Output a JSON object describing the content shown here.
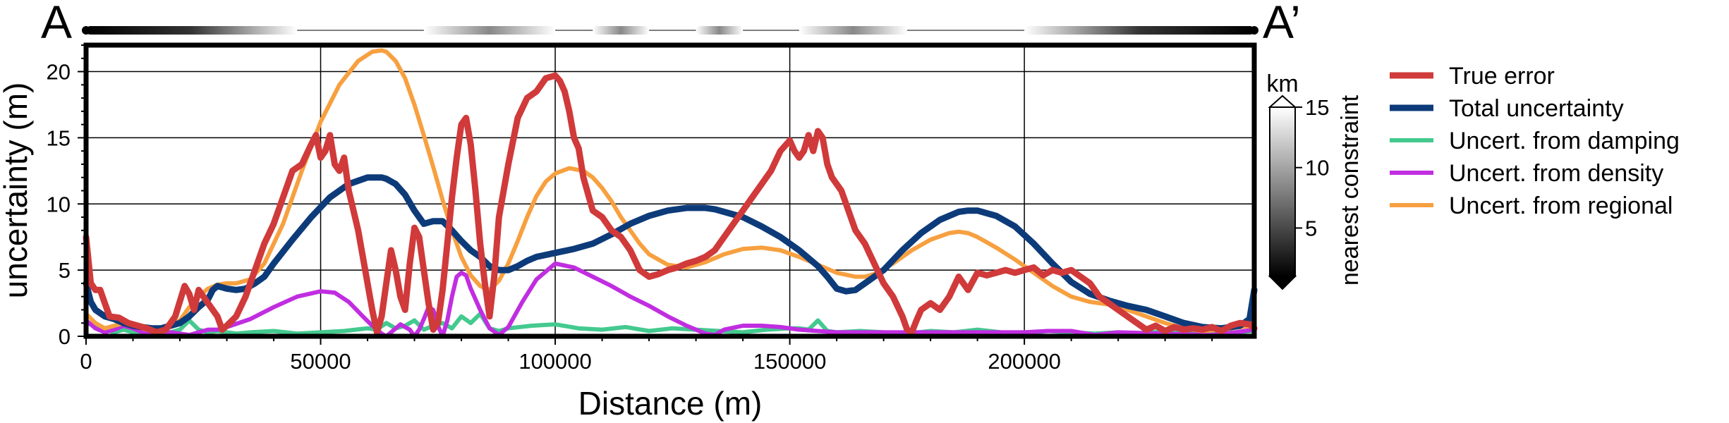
{
  "chart_data": {
    "type": "line",
    "title": "",
    "section_labels": {
      "start": "A",
      "end": "A’"
    },
    "xlabel": "Distance (m)",
    "ylabel": "uncertainty (m)",
    "xlim": [
      0,
      249000
    ],
    "ylim": [
      0,
      22
    ],
    "xticks": [
      0,
      50000,
      100000,
      150000,
      200000
    ],
    "yticks": [
      0,
      5,
      10,
      15,
      20
    ],
    "grid": true,
    "legend_position": "right",
    "series": [
      {
        "name": "True error",
        "color": "#d03a3a",
        "x": [
          0,
          1000,
          2000,
          3000,
          4000,
          5000,
          7000,
          9000,
          11000,
          13000,
          15000,
          17000,
          19000,
          21000,
          22000,
          23000,
          24000,
          25000,
          26000,
          27000,
          28000,
          29000,
          30000,
          32000,
          34000,
          36000,
          38000,
          40000,
          42000,
          44000,
          46000,
          48000,
          49000,
          50000,
          51000,
          52000,
          53000,
          54000,
          55000,
          56000,
          57000,
          58000,
          59000,
          60000,
          61000,
          62000,
          63000,
          64000,
          65000,
          66000,
          67000,
          68000,
          69000,
          70000,
          71000,
          72000,
          73000,
          74000,
          75000,
          76000,
          77000,
          78000,
          79000,
          80000,
          81000,
          82000,
          83000,
          84000,
          85000,
          86000,
          87000,
          88000,
          90000,
          92000,
          94000,
          96000,
          98000,
          100000,
          101000,
          102000,
          103000,
          104000,
          105000,
          106000,
          108000,
          110000,
          112000,
          114000,
          116000,
          118000,
          120000,
          122000,
          124000,
          126000,
          128000,
          130000,
          132000,
          134000,
          136000,
          138000,
          140000,
          142000,
          144000,
          146000,
          148000,
          150000,
          151000,
          152000,
          153000,
          154000,
          155000,
          156000,
          157000,
          158000,
          159000,
          160000,
          161000,
          162000,
          163000,
          164000,
          166000,
          168000,
          170000,
          172000,
          174000,
          175000,
          176000,
          177000,
          178000,
          180000,
          182000,
          184000,
          186000,
          188000,
          190000,
          192000,
          194000,
          196000,
          198000,
          200000,
          202000,
          204000,
          206000,
          208000,
          210000,
          212000,
          214000,
          216000,
          218000,
          220000,
          222000,
          224000,
          226000,
          228000,
          230000,
          232000,
          234000,
          236000,
          238000,
          240000,
          242000,
          244000,
          246000,
          248000,
          249000
        ],
        "y": [
          7.5,
          4.0,
          3.5,
          3.5,
          2.5,
          1.5,
          1.4,
          1.0,
          0.8,
          0.6,
          0.3,
          0.5,
          1.5,
          3.8,
          3.2,
          2.0,
          3.5,
          3.0,
          2.5,
          2.0,
          1.5,
          0.5,
          0.8,
          1.5,
          3.0,
          5.0,
          7.0,
          8.5,
          10.5,
          12.5,
          13.0,
          14.5,
          15.2,
          13.5,
          14.0,
          15.2,
          13.0,
          12.5,
          13.5,
          11.0,
          9.5,
          8.0,
          6.0,
          4.0,
          2.0,
          0.3,
          1.5,
          4.0,
          6.5,
          5.0,
          3.0,
          2.0,
          5.5,
          8.2,
          7.5,
          5.0,
          2.5,
          0.5,
          1.0,
          3.5,
          7.0,
          10.5,
          13.5,
          16.0,
          16.5,
          14.5,
          11.0,
          7.0,
          4.0,
          1.5,
          4.5,
          9.0,
          13.0,
          16.5,
          18.0,
          18.5,
          19.5,
          19.7,
          19.3,
          18.5,
          17.0,
          15.0,
          14.2,
          12.0,
          9.5,
          9.0,
          8.0,
          7.5,
          6.5,
          5.0,
          4.5,
          4.7,
          5.0,
          5.2,
          5.5,
          5.7,
          6.0,
          6.5,
          7.5,
          8.5,
          9.5,
          10.5,
          11.5,
          12.5,
          14.0,
          14.8,
          14.0,
          13.5,
          14.0,
          15.2,
          14.0,
          15.5,
          15.0,
          13.0,
          12.0,
          11.5,
          11.0,
          10.0,
          9.0,
          8.0,
          7.0,
          5.5,
          4.0,
          3.0,
          1.5,
          0.5,
          0.3,
          1.2,
          2.0,
          2.5,
          2.0,
          3.0,
          4.5,
          3.5,
          4.8,
          4.6,
          4.8,
          5.0,
          4.8,
          5.0,
          5.2,
          4.6,
          5.0,
          4.8,
          5.0,
          4.5,
          4.0,
          3.0,
          2.5,
          2.0,
          1.5,
          1.0,
          0.5,
          0.8,
          0.4,
          0.7,
          0.5,
          0.6,
          0.5,
          0.7,
          0.4,
          0.8,
          1.0,
          0.9,
          0.6
        ]
      },
      {
        "name": "Total uncertainty",
        "color": "#0d3b7a",
        "x": [
          0,
          1000,
          2000,
          4000,
          6000,
          8000,
          10000,
          12000,
          14000,
          16000,
          18000,
          20000,
          22000,
          24000,
          26000,
          27000,
          28000,
          30000,
          32000,
          34000,
          36000,
          38000,
          40000,
          44000,
          48000,
          52000,
          56000,
          60000,
          63000,
          64000,
          66000,
          68000,
          70000,
          72000,
          74000,
          76000,
          78000,
          80000,
          82000,
          84000,
          86000,
          88000,
          90000,
          92000,
          94000,
          96000,
          100000,
          104000,
          108000,
          112000,
          116000,
          120000,
          124000,
          128000,
          132000,
          134000,
          136000,
          140000,
          144000,
          148000,
          152000,
          156000,
          158000,
          160000,
          162000,
          164000,
          166000,
          170000,
          174000,
          178000,
          182000,
          186000,
          188000,
          190000,
          194000,
          198000,
          202000,
          206000,
          210000,
          214000,
          218000,
          222000,
          226000,
          230000,
          234000,
          238000,
          242000,
          246000,
          248000,
          249000
        ],
        "y": [
          4.0,
          2.6,
          2.0,
          1.5,
          1.3,
          1.0,
          0.8,
          0.7,
          0.6,
          0.6,
          0.8,
          1.0,
          1.5,
          2.2,
          2.8,
          3.5,
          3.8,
          3.6,
          3.5,
          3.6,
          4.0,
          4.5,
          5.5,
          7.3,
          9.0,
          10.5,
          11.5,
          12.0,
          12.0,
          11.9,
          11.5,
          10.7,
          9.5,
          8.5,
          8.7,
          8.7,
          8.0,
          7.2,
          6.5,
          6.0,
          5.3,
          5.0,
          5.0,
          5.3,
          5.7,
          6.0,
          6.3,
          6.6,
          7.0,
          7.7,
          8.5,
          9.1,
          9.5,
          9.7,
          9.7,
          9.6,
          9.4,
          9.0,
          8.3,
          7.5,
          6.5,
          5.3,
          4.5,
          3.6,
          3.4,
          3.5,
          4.0,
          5.0,
          6.5,
          7.8,
          8.8,
          9.4,
          9.5,
          9.5,
          9.1,
          8.3,
          7.0,
          5.5,
          4.1,
          3.2,
          2.7,
          2.3,
          2.0,
          1.5,
          1.0,
          0.7,
          0.6,
          0.8,
          1.3,
          3.5
        ]
      },
      {
        "name": "Uncert. from damping",
        "color": "#44c98f",
        "x": [
          0,
          2000,
          4000,
          6000,
          8000,
          10000,
          12000,
          14000,
          16000,
          18000,
          20000,
          22000,
          24000,
          26000,
          28000,
          30000,
          32000,
          35000,
          40000,
          45000,
          50000,
          55000,
          60000,
          62000,
          64000,
          66000,
          68000,
          70000,
          72000,
          74000,
          76000,
          78000,
          80000,
          82000,
          84000,
          86000,
          88000,
          90000,
          95000,
          100000,
          105000,
          110000,
          115000,
          120000,
          125000,
          130000,
          135000,
          140000,
          145000,
          150000,
          152000,
          154000,
          156000,
          158000,
          160000,
          165000,
          170000,
          175000,
          180000,
          185000,
          190000,
          195000,
          200000,
          205000,
          210000,
          215000,
          220000,
          225000,
          230000,
          235000,
          240000,
          245000,
          249000
        ],
        "y": [
          1.0,
          0.8,
          0.5,
          0.3,
          0.5,
          0.3,
          0.2,
          0.2,
          0.3,
          0.3,
          0.5,
          1.2,
          0.5,
          0.3,
          0.4,
          0.3,
          0.2,
          0.3,
          0.4,
          0.2,
          0.3,
          0.4,
          0.6,
          0.5,
          1.0,
          0.6,
          0.8,
          1.2,
          0.5,
          0.8,
          1.0,
          0.6,
          1.5,
          1.0,
          1.7,
          0.6,
          0.4,
          0.6,
          0.8,
          0.9,
          0.6,
          0.5,
          0.7,
          0.4,
          0.6,
          0.5,
          0.4,
          0.3,
          0.5,
          0.6,
          0.6,
          0.5,
          1.2,
          0.4,
          0.3,
          0.4,
          0.3,
          0.2,
          0.4,
          0.3,
          0.5,
          0.3,
          0.2,
          0.4,
          0.3,
          0.2,
          0.3,
          0.2,
          0.4,
          0.3,
          0.2,
          0.3,
          0.4
        ]
      },
      {
        "name": "Uncert. from density",
        "color": "#c02ee0",
        "x": [
          0,
          2000,
          4000,
          6000,
          8000,
          10000,
          12000,
          14000,
          16000,
          18000,
          20000,
          22000,
          24000,
          26000,
          28000,
          30000,
          35000,
          40000,
          45000,
          50000,
          53000,
          56000,
          59000,
          61000,
          63000,
          64000,
          65000,
          67000,
          69000,
          70000,
          71000,
          72000,
          73000,
          74000,
          75000,
          76000,
          77000,
          78000,
          79000,
          80000,
          81000,
          82000,
          84000,
          86000,
          88000,
          90000,
          93000,
          96000,
          100000,
          104000,
          108000,
          112000,
          116000,
          120000,
          124000,
          128000,
          132000,
          134000,
          136000,
          140000,
          144000,
          148000,
          152000,
          156000,
          160000,
          165000,
          170000,
          175000,
          180000,
          190000,
          200000,
          205000,
          210000,
          215000,
          220000,
          230000,
          240000,
          245000,
          249000
        ],
        "y": [
          1.2,
          0.6,
          0.3,
          0.5,
          0.8,
          0.6,
          0.3,
          0.1,
          0.2,
          0.3,
          0.2,
          0.1,
          0.3,
          0.5,
          0.5,
          0.7,
          1.3,
          2.2,
          3.0,
          3.4,
          3.3,
          2.6,
          1.5,
          0.8,
          0.2,
          0.0,
          0.3,
          0.9,
          0.5,
          0.0,
          0.5,
          1.3,
          2.2,
          2.0,
          0.8,
          0.0,
          1.2,
          3.0,
          4.5,
          4.8,
          4.6,
          3.6,
          2.0,
          0.6,
          0.1,
          0.7,
          2.6,
          4.3,
          5.5,
          5.2,
          4.5,
          3.8,
          3.0,
          2.3,
          1.5,
          0.8,
          0.2,
          0.1,
          0.5,
          0.8,
          0.8,
          0.7,
          0.5,
          0.4,
          0.3,
          0.3,
          0.3,
          0.3,
          0.3,
          0.3,
          0.3,
          0.4,
          0.4,
          0.1,
          0.3,
          0.2,
          0.1,
          0.3,
          0.5
        ]
      },
      {
        "name": "Uncert. from regional",
        "color": "#f7a040",
        "x": [
          0,
          2000,
          4000,
          6000,
          8000,
          10000,
          12000,
          14000,
          16000,
          18000,
          20000,
          22000,
          24000,
          26000,
          28000,
          30000,
          32000,
          35000,
          38000,
          42000,
          46000,
          50000,
          54000,
          58000,
          61000,
          63000,
          64000,
          66000,
          68000,
          70000,
          72000,
          74000,
          76000,
          78000,
          80000,
          82000,
          84000,
          86000,
          88000,
          90000,
          92000,
          94000,
          96000,
          98000,
          100000,
          103000,
          106000,
          108000,
          110000,
          112000,
          114000,
          116000,
          118000,
          120000,
          124000,
          128000,
          132000,
          136000,
          140000,
          144000,
          148000,
          152000,
          156000,
          160000,
          164000,
          166000,
          168000,
          172000,
          176000,
          180000,
          184000,
          186000,
          188000,
          190000,
          194000,
          198000,
          202000,
          206000,
          210000,
          214000,
          218000,
          222000,
          226000,
          230000,
          234000,
          238000,
          242000,
          246000,
          249000
        ],
        "y": [
          1.7,
          1.0,
          0.6,
          0.8,
          1.0,
          0.9,
          0.6,
          0.4,
          0.5,
          0.8,
          1.2,
          2.2,
          3.0,
          3.6,
          3.9,
          4.0,
          4.0,
          4.3,
          5.5,
          8.5,
          12.5,
          16.2,
          19.0,
          20.8,
          21.5,
          21.6,
          21.5,
          20.8,
          19.5,
          17.5,
          15.2,
          12.8,
          10.3,
          8.0,
          6.0,
          4.6,
          3.8,
          3.5,
          4.2,
          5.5,
          7.2,
          9.0,
          10.6,
          11.7,
          12.3,
          12.7,
          12.5,
          12.0,
          11.2,
          10.2,
          9.0,
          8.0,
          7.0,
          6.2,
          5.4,
          5.2,
          5.6,
          6.2,
          6.6,
          6.7,
          6.5,
          6.0,
          5.4,
          4.8,
          4.5,
          4.5,
          4.7,
          5.5,
          6.5,
          7.3,
          7.8,
          7.9,
          7.8,
          7.5,
          6.7,
          5.8,
          4.8,
          3.8,
          3.0,
          2.6,
          2.4,
          2.0,
          1.5,
          1.0,
          0.6,
          0.4,
          0.5,
          0.7,
          0.8
        ]
      }
    ],
    "colorbar": {
      "label": "nearest constraint",
      "unit": "km",
      "ticks": [
        5,
        10,
        15
      ],
      "range": [
        1,
        15
      ]
    },
    "constraint_strip": {
      "range": [
        0,
        249000
      ],
      "segments": [
        {
          "from": 0,
          "to": 45000
        },
        {
          "from": 72000,
          "to": 100000
        },
        {
          "from": 108000,
          "to": 120000
        },
        {
          "from": 130000,
          "to": 140000
        },
        {
          "from": 152000,
          "to": 175000
        },
        {
          "from": 200000,
          "to": 249000
        }
      ]
    }
  }
}
